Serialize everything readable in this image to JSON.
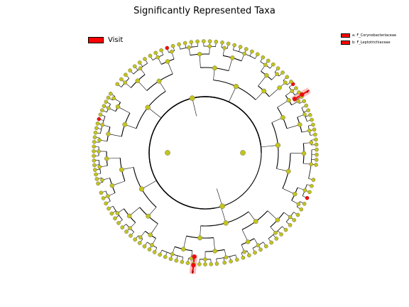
{
  "title": "Significantly Represented Taxa",
  "legend": {
    "class_label": "Visit",
    "class_color": "#ff0000",
    "clades": [
      {
        "label": "a: F_Corynebacteriaceae"
      },
      {
        "label": "b: F_Leptotrichiaceae"
      }
    ]
  },
  "highlights": [
    {
      "letter": "a"
    },
    {
      "letter": "b"
    }
  ],
  "colors": {
    "node": "#c4c41c",
    "node_stroke": "#555555",
    "highlight_fill": "#ff0000",
    "highlight_band": "#ffb0b0",
    "edge": "#000000"
  }
}
